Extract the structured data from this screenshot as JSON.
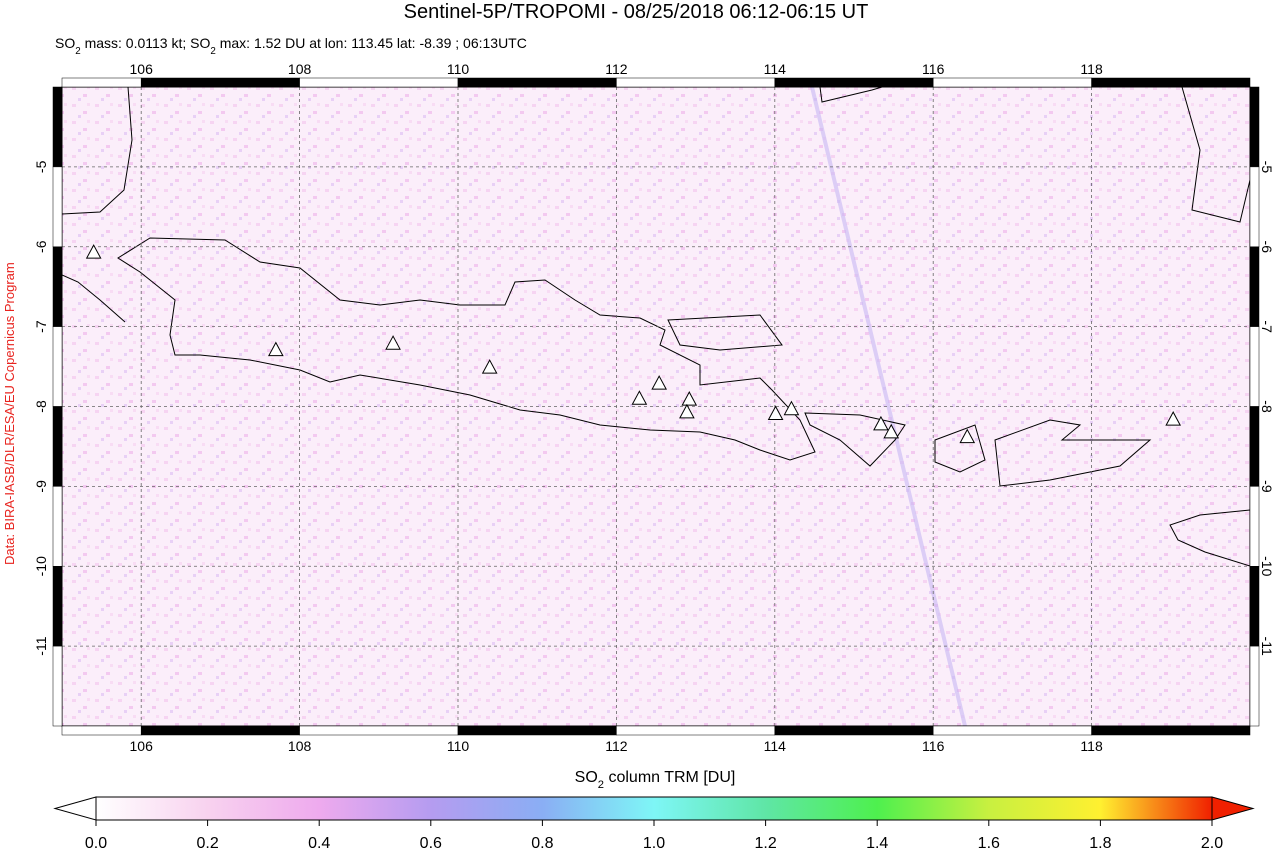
{
  "header": {
    "title": "Sentinel-5P/TROPOMI - 08/25/2018 06:12-06:15 UT",
    "subtitle_parts": [
      "SO",
      "2",
      " mass: 0.0113 kt; SO",
      "2",
      " max: 1.52 DU at lon: 113.45 lat: -8.39 ; 06:13UTC"
    ]
  },
  "side_note": "Data: BIRA-IASB/DLR/ESA/EU Copernicus Program",
  "map": {
    "xlim": [
      105,
      120
    ],
    "ylim": [
      -4,
      -12
    ],
    "xticks": [
      106,
      108,
      110,
      112,
      114,
      116,
      118
    ],
    "yticks": [
      -5,
      -6,
      -7,
      -8,
      -9,
      -10,
      -11
    ],
    "grid": true,
    "volcanoes": [
      {
        "lon": 105.4,
        "lat": -6.08
      },
      {
        "lon": 107.7,
        "lat": -7.3
      },
      {
        "lon": 109.18,
        "lat": -7.22
      },
      {
        "lon": 110.4,
        "lat": -7.52
      },
      {
        "lon": 112.29,
        "lat": -7.91
      },
      {
        "lon": 112.54,
        "lat": -7.72
      },
      {
        "lon": 112.92,
        "lat": -7.92
      },
      {
        "lon": 112.89,
        "lat": -8.08
      },
      {
        "lon": 114.01,
        "lat": -8.1
      },
      {
        "lon": 114.21,
        "lat": -8.04
      },
      {
        "lon": 115.34,
        "lat": -8.23
      },
      {
        "lon": 115.47,
        "lat": -8.33
      },
      {
        "lon": 116.43,
        "lat": -8.39
      },
      {
        "lon": 119.03,
        "lat": -8.17
      }
    ]
  },
  "colorbar": {
    "label_parts": [
      "SO",
      "2",
      " column TRM [DU]"
    ],
    "lim": [
      0,
      2
    ],
    "ticks": [
      {
        "value": 0,
        "label": "0.0"
      },
      {
        "value": 0.2,
        "label": "0.2"
      },
      {
        "value": 0.4,
        "label": "0.4"
      },
      {
        "value": 0.6,
        "label": "0.6"
      },
      {
        "value": 0.8,
        "label": "0.8"
      },
      {
        "value": 1,
        "label": "1.0"
      },
      {
        "value": 1.2,
        "label": "1.2"
      },
      {
        "value": 1.4,
        "label": "1.4"
      },
      {
        "value": 1.6,
        "label": "1.6"
      },
      {
        "value": 1.8,
        "label": "1.8"
      },
      {
        "value": 2,
        "label": "2.0"
      }
    ],
    "colors": [
      "#ffffff",
      "#f8d2ef",
      "#eeaaee",
      "#b59cf0",
      "#8aaef4",
      "#7ef6f6",
      "#5fe6a6",
      "#4ef04e",
      "#c8f040",
      "#fff030",
      "#f02000"
    ]
  }
}
